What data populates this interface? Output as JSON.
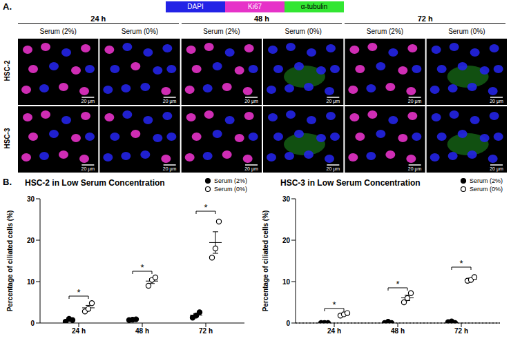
{
  "panel_a": {
    "label": "A.",
    "channels": [
      {
        "name": "DAPI",
        "color": "#2323e6"
      },
      {
        "name": "Ki67",
        "color": "#e632c8"
      },
      {
        "name": "α-tubulin",
        "color": "#32e632"
      }
    ],
    "time_points": [
      "24 h",
      "48 h",
      "72 h"
    ],
    "conditions": [
      "Serum (2%)",
      "Serum (0%)"
    ],
    "cell_lines": [
      "HSC-2",
      "HSC-3"
    ],
    "scale_bar": "20 μm"
  },
  "panel_b": {
    "label": "B."
  },
  "chart_data": [
    {
      "type": "scatter",
      "title": "HSC-2 in Low Serum Concentration",
      "categories": [
        "24 h",
        "48 h",
        "72 h"
      ],
      "y_label": "Percentage of ciliated cells (%)",
      "ylim": [
        0,
        30
      ],
      "yticks": [
        0,
        10,
        20,
        30
      ],
      "legend": "top-right",
      "series": [
        {
          "name": "Serum (2%)",
          "color": "#000000",
          "marker": "filled",
          "values": [
            [
              0.3,
              1.0,
              0.7
            ],
            [
              0.7,
              0.8,
              0.9
            ],
            [
              1.3,
              1.8,
              2.6
            ]
          ],
          "means": [
            0.67,
            0.8,
            1.9
          ],
          "errors": [
            0.2,
            0.06,
            0.38
          ]
        },
        {
          "name": "Serum (0%)",
          "color": "#000000",
          "marker": "open",
          "values": [
            [
              2.8,
              3.4,
              4.8
            ],
            [
              9.0,
              10.4,
              11.0
            ],
            [
              15.8,
              18.0,
              24.5
            ]
          ],
          "means": [
            3.67,
            10.13,
            19.43
          ],
          "errors": [
            0.59,
            0.59,
            2.6
          ]
        }
      ],
      "significance": {
        "label": "*",
        "y": [
          6.5,
          12.5,
          27
        ]
      }
    },
    {
      "type": "scatter",
      "title": "HSC-3 in Low Serum Concentration",
      "categories": [
        "24 h",
        "48 h",
        "72 h"
      ],
      "y_label": "Percentage of ciliated cells (%)",
      "ylim": [
        0,
        30
      ],
      "yticks": [
        0,
        10,
        20,
        30
      ],
      "legend": "top-right",
      "zero_line": {
        "value": 0,
        "line_style": "dotted"
      },
      "series": [
        {
          "name": "Serum (2%)",
          "color": "#000000",
          "marker": "filled",
          "values": [
            [
              0,
              0,
              0
            ],
            [
              0,
              0.3,
              0
            ],
            [
              0.2,
              0.4,
              0
            ]
          ],
          "means": [
            0,
            0.1,
            0.2
          ],
          "errors": [
            0,
            0.1,
            0.12
          ]
        },
        {
          "name": "Serum (0%)",
          "color": "#000000",
          "marker": "open",
          "values": [
            [
              1.8,
              2.1,
              2.4
            ],
            [
              5.0,
              6.0,
              7.2
            ],
            [
              10.2,
              10.4,
              11.1
            ]
          ],
          "means": [
            2.1,
            6.07,
            10.57
          ],
          "errors": [
            0.17,
            0.64,
            0.27
          ]
        }
      ],
      "significance": {
        "label": "*",
        "y": [
          3.5,
          8.5,
          13.5
        ]
      }
    }
  ]
}
